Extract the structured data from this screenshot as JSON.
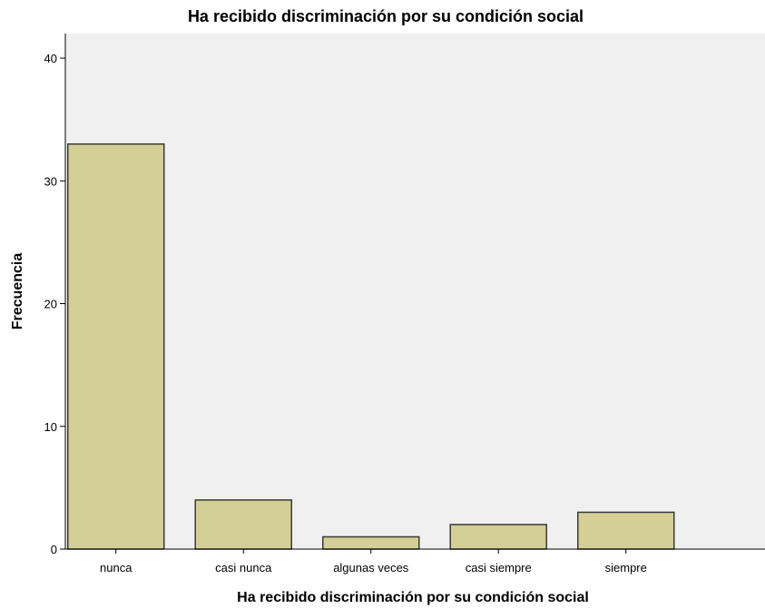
{
  "chart_data": {
    "type": "bar",
    "title": "Ha recibido discriminación por su condición social",
    "xlabel": "Ha recibido discriminación por su condición social",
    "ylabel": "Frecuencia",
    "categories": [
      "nunca",
      "casi nunca",
      "algunas veces",
      "casi siempre",
      "siempre"
    ],
    "values": [
      33,
      4,
      1,
      2,
      3
    ],
    "ylim": [
      0,
      42
    ],
    "yticks": [
      0,
      10,
      20,
      30,
      40
    ],
    "grid": false,
    "legend": "none",
    "colors": {
      "bar_fill": "#d4cf95",
      "bar_stroke": "#3a3a3a",
      "plot_background": "#f0f0f0",
      "axis": "#000000"
    }
  }
}
